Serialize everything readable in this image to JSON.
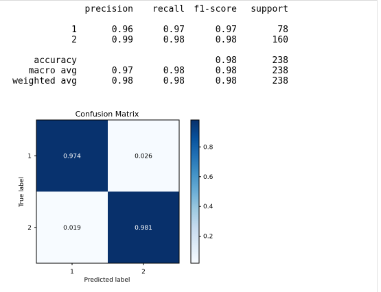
{
  "report": {
    "headers": [
      "precision",
      "recall",
      "f1-score",
      "support"
    ],
    "rows": [
      {
        "label": "1",
        "precision": "0.96",
        "recall": "0.97",
        "f1": "0.97",
        "support": "78"
      },
      {
        "label": "2",
        "precision": "0.99",
        "recall": "0.98",
        "f1": "0.98",
        "support": "160"
      }
    ],
    "summary": [
      {
        "label": "accuracy",
        "precision": "",
        "recall": "",
        "f1": "0.98",
        "support": "238"
      },
      {
        "label": "macro avg",
        "precision": "0.97",
        "recall": "0.98",
        "f1": "0.98",
        "support": "238"
      },
      {
        "label": "weighted avg",
        "precision": "0.98",
        "recall": "0.98",
        "f1": "0.98",
        "support": "238"
      }
    ]
  },
  "chart_data": {
    "type": "heatmap",
    "title": "Confusion Matrix",
    "xlabel": "Predicted label",
    "ylabel": "True label",
    "x_categories": [
      "1",
      "2"
    ],
    "y_categories": [
      "1",
      "2"
    ],
    "values": [
      [
        0.974,
        0.026
      ],
      [
        0.019,
        0.981
      ]
    ],
    "value_labels": [
      [
        "0.974",
        "0.026"
      ],
      [
        "0.019",
        "0.981"
      ]
    ],
    "colormap": "Blues",
    "colorbar": {
      "range": [
        0.019,
        0.981
      ],
      "ticks": [
        0.2,
        0.4,
        0.6,
        0.8
      ],
      "tick_labels": [
        "0.2",
        "0.4",
        "0.6",
        "0.8"
      ]
    },
    "grid": false
  }
}
